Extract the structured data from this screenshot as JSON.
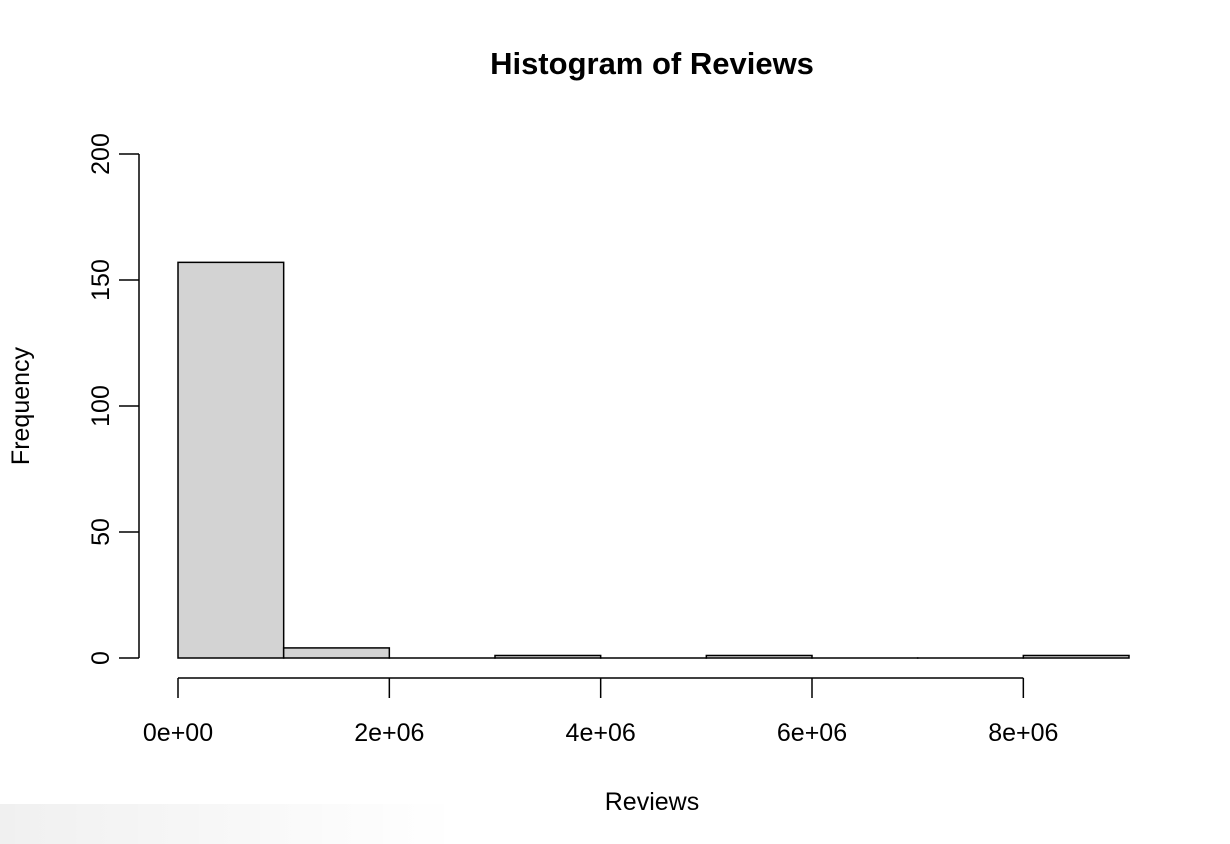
{
  "chart_data": {
    "type": "bar",
    "subtype": "histogram",
    "title": "Histogram of Reviews",
    "xlabel": "Reviews",
    "ylabel": "Frequency",
    "bins": [
      {
        "start": 0,
        "end": 1000000,
        "count": 157
      },
      {
        "start": 1000000,
        "end": 2000000,
        "count": 4
      },
      {
        "start": 2000000,
        "end": 3000000,
        "count": 0
      },
      {
        "start": 3000000,
        "end": 4000000,
        "count": 1
      },
      {
        "start": 4000000,
        "end": 5000000,
        "count": 0
      },
      {
        "start": 5000000,
        "end": 6000000,
        "count": 1
      },
      {
        "start": 6000000,
        "end": 7000000,
        "count": 0
      },
      {
        "start": 7000000,
        "end": 8000000,
        "count": 0
      },
      {
        "start": 8000000,
        "end": 9000000,
        "count": 1
      }
    ],
    "xlim": [
      0,
      9000000
    ],
    "ylim": [
      0,
      200
    ],
    "x_ticks": [
      {
        "value": 0,
        "label": "0e+00"
      },
      {
        "value": 2000000,
        "label": "2e+06"
      },
      {
        "value": 4000000,
        "label": "4e+06"
      },
      {
        "value": 6000000,
        "label": "6e+06"
      },
      {
        "value": 8000000,
        "label": "8e+06"
      }
    ],
    "y_ticks": [
      {
        "value": 0,
        "label": "0"
      },
      {
        "value": 50,
        "label": "50"
      },
      {
        "value": 100,
        "label": "100"
      },
      {
        "value": 150,
        "label": "150"
      },
      {
        "value": 200,
        "label": "200"
      }
    ],
    "grid": false,
    "bar_color": "#d3d3d3"
  }
}
